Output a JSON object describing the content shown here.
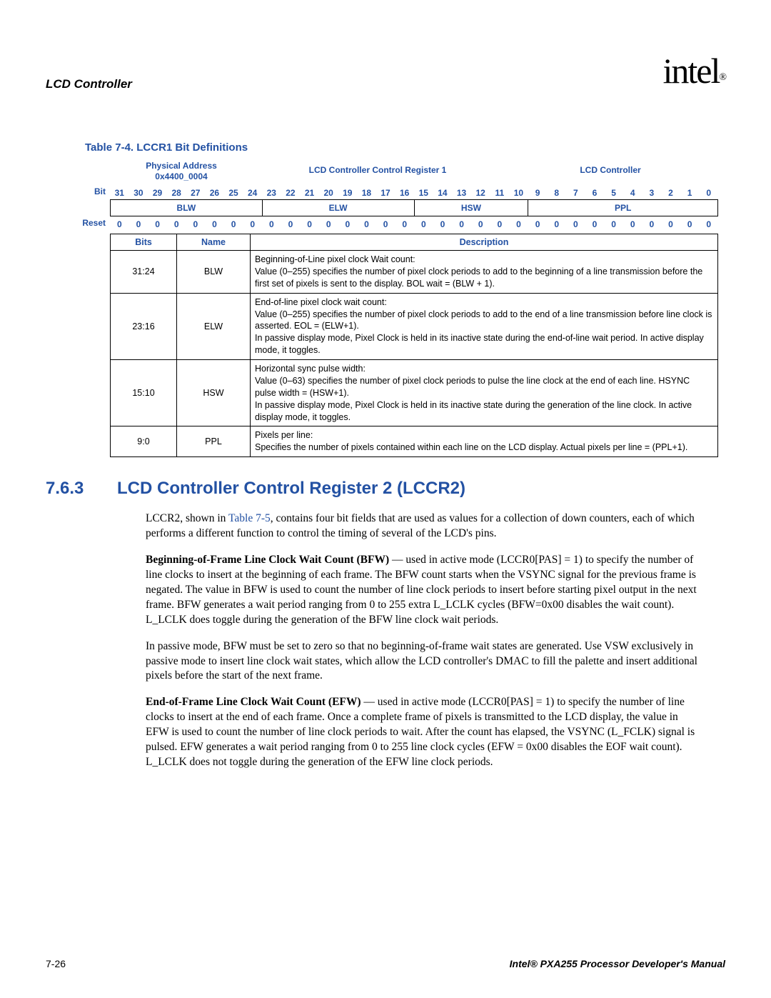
{
  "header": {
    "title": "LCD Controller",
    "logo": "intel",
    "logo_sub": "®"
  },
  "table": {
    "title": "Table 7-4. LCCR1 Bit Definitions",
    "physical_address_label": "Physical Address",
    "physical_address_value": "0x4400_0004",
    "register_name": "LCD Controller Control Register 1",
    "module_name": "LCD Controller",
    "bit_label": "Bit",
    "reset_label": "Reset",
    "bits": [
      "31",
      "30",
      "29",
      "28",
      "27",
      "26",
      "25",
      "24",
      "23",
      "22",
      "21",
      "20",
      "19",
      "18",
      "17",
      "16",
      "15",
      "14",
      "13",
      "12",
      "11",
      "10",
      "9",
      "8",
      "7",
      "6",
      "5",
      "4",
      "3",
      "2",
      "1",
      "0"
    ],
    "fields": [
      {
        "name": "BLW",
        "span": 8
      },
      {
        "name": "ELW",
        "span": 8
      },
      {
        "name": "HSW",
        "span": 6
      },
      {
        "name": "PPL",
        "span": 10
      }
    ],
    "reset_values": [
      "0",
      "0",
      "0",
      "0",
      "0",
      "0",
      "0",
      "0",
      "0",
      "0",
      "0",
      "0",
      "0",
      "0",
      "0",
      "0",
      "0",
      "0",
      "0",
      "0",
      "0",
      "0",
      "0",
      "0",
      "0",
      "0",
      "0",
      "0",
      "0",
      "0",
      "0",
      "0"
    ],
    "columns": {
      "bits": "Bits",
      "name": "Name",
      "description": "Description"
    },
    "rows": [
      {
        "bits": "31:24",
        "name": "BLW",
        "desc": "Beginning-of-Line pixel clock Wait count:\nValue (0–255) specifies the number of pixel clock periods to add to the beginning of a line transmission before the first set of pixels is sent to the display. BOL wait = (BLW + 1)."
      },
      {
        "bits": "23:16",
        "name": "ELW",
        "desc": "End-of-line pixel clock wait count:\nValue (0–255) specifies the number of pixel clock periods to add to the end of a line transmission before line clock is asserted. EOL = (ELW+1).\nIn passive display mode, Pixel Clock is held in its inactive state during the end-of-line wait period. In active display mode, it toggles."
      },
      {
        "bits": "15:10",
        "name": "HSW",
        "desc": "Horizontal sync pulse width:\nValue (0–63) specifies the number of pixel clock periods to pulse the line clock at the end of each line. HSYNC pulse width = (HSW+1).\nIn passive display mode, Pixel Clock is held in its inactive state during the generation of the line clock. In active display mode, it toggles."
      },
      {
        "bits": "9:0",
        "name": "PPL",
        "desc": "Pixels per line:\nSpecifies the number of pixels contained within each line on the LCD display. Actual pixels per line = (PPL+1)."
      }
    ]
  },
  "section": {
    "number": "7.6.3",
    "title": "LCD Controller Control Register 2 (LCCR2)",
    "table_ref": "Table 7-5",
    "para1_a": "LCCR2, shown in ",
    "para1_b": ", contains four bit fields that are used as values for a collection of down counters, each of which performs a different function to control the timing of several of the LCD's pins.",
    "para2_strong": "Beginning-of-Frame Line Clock Wait Count (BFW)",
    "para2": " — used in active mode (LCCR0[PAS] = 1) to specify the number of line clocks to insert at the beginning of each frame. The BFW count starts when the VSYNC signal for the previous frame is negated. The value in BFW is used to count the number of line clock periods to insert before starting pixel output in the next frame. BFW generates a wait period ranging from 0 to 255 extra L_LCLK cycles (BFW=0x00 disables the wait count). L_LCLK does toggle during the generation of the BFW line clock wait periods.",
    "para3": "In passive mode, BFW must be set to zero so that no beginning-of-frame wait states are generated. Use VSW exclusively in passive mode to insert line clock wait states, which allow the LCD controller's DMAC to fill the palette and insert additional pixels before the start of the next frame.",
    "para4_strong": "End-of-Frame Line Clock Wait Count (EFW)",
    "para4": " — used in active mode (LCCR0[PAS] = 1) to specify the number of line clocks to insert at the end of each frame. Once a complete frame of pixels is transmitted to the LCD display, the value in EFW is used to count the number of line clock periods to wait. After the count has elapsed, the VSYNC (L_FCLK) signal is pulsed. EFW generates a wait period ranging from 0 to 255 line clock cycles (EFW = 0x00 disables the EOF wait count). L_LCLK does not toggle during the generation of the EFW line clock periods."
  },
  "footer": {
    "page": "7-26",
    "doc": "Intel® PXA255 Processor Developer's Manual"
  },
  "colors": {
    "accent": "#2351a3",
    "text": "#000000",
    "bg": "#ffffff"
  }
}
